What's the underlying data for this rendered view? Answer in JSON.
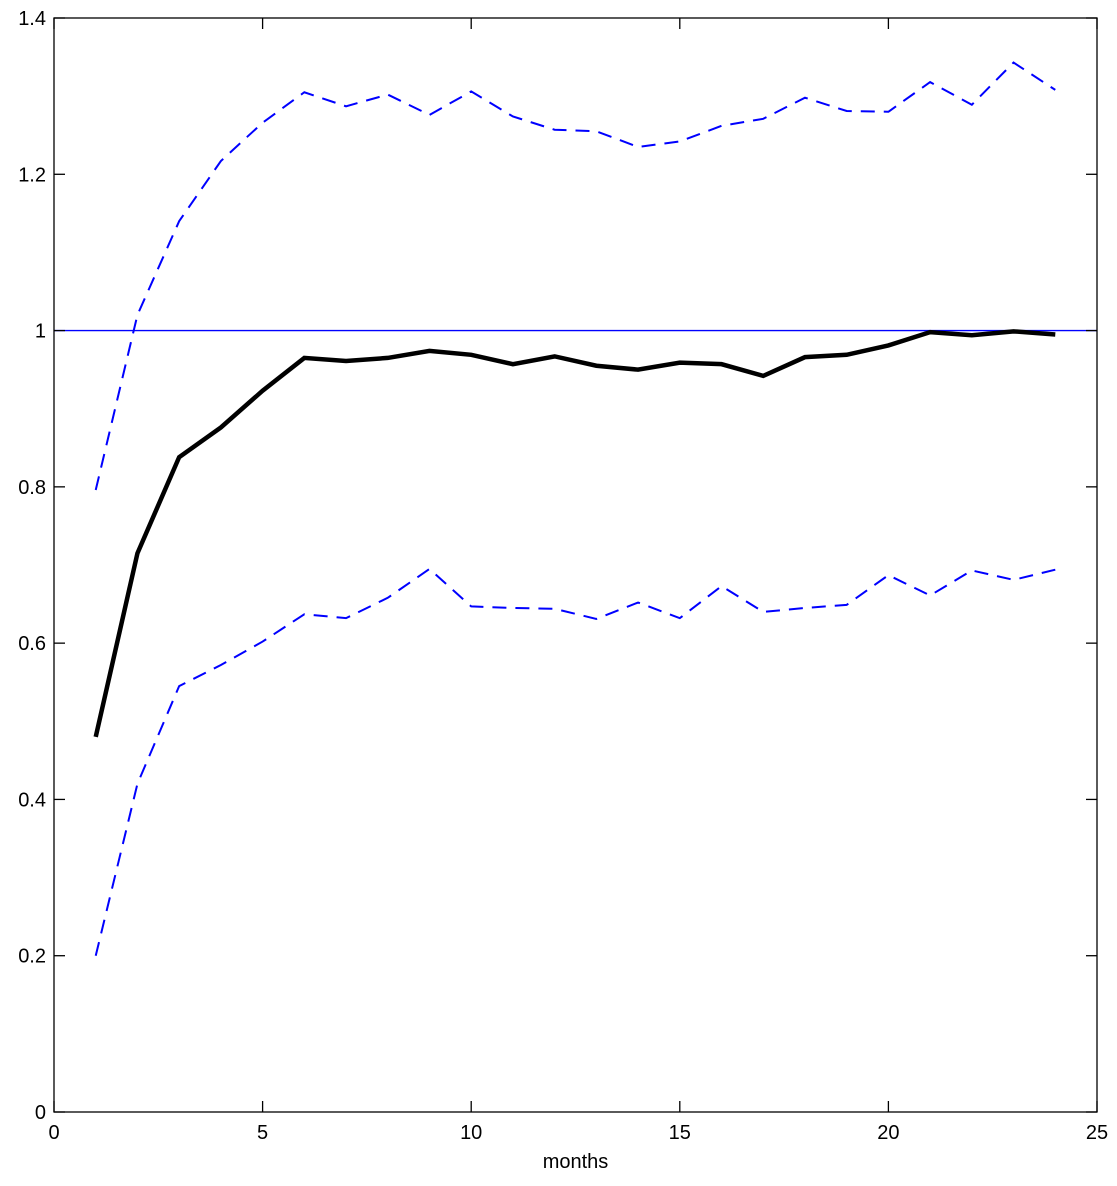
{
  "chart_data": {
    "type": "line",
    "title": "",
    "xlabel": "months",
    "ylabel": "",
    "xlim": [
      0,
      25
    ],
    "ylim": [
      0,
      1.4
    ],
    "xticks": [
      0,
      5,
      10,
      15,
      20,
      25
    ],
    "yticks": [
      0,
      0.2,
      0.4,
      0.6,
      0.8,
      1,
      1.2,
      1.4
    ],
    "xtick_labels": [
      "0",
      "5",
      "10",
      "15",
      "20",
      "25"
    ],
    "ytick_labels": [
      "0",
      "0.2",
      "0.4",
      "0.6",
      "0.8",
      "1",
      "1.2",
      "1.4"
    ],
    "grid": false,
    "reference_line": {
      "y": 1,
      "color": "#0000ff",
      "style": "solid"
    },
    "x": [
      1,
      2,
      3,
      4,
      5,
      6,
      7,
      8,
      9,
      10,
      11,
      12,
      13,
      14,
      15,
      16,
      17,
      18,
      19,
      20,
      21,
      22,
      23,
      24
    ],
    "series": [
      {
        "color": "#000000",
        "style": "solid",
        "values": [
          0.48,
          0.715,
          0.838,
          0.876,
          0.923,
          0.965,
          0.961,
          0.965,
          0.974,
          0.969,
          0.957,
          0.967,
          0.955,
          0.95,
          0.959,
          0.957,
          0.942,
          0.966,
          0.969,
          0.981,
          0.998,
          0.994,
          0.999,
          0.995
        ]
      },
      {
        "color": "#0000ff",
        "style": "dashed",
        "values": [
          0.796,
          1.02,
          1.14,
          1.217,
          1.266,
          1.305,
          1.287,
          1.302,
          1.276,
          1.306,
          1.274,
          1.257,
          1.255,
          1.235,
          1.242,
          1.262,
          1.271,
          1.298,
          1.281,
          1.28,
          1.318,
          1.289,
          1.343,
          1.308
        ]
      },
      {
        "color": "#0000ff",
        "style": "dashed",
        "values": [
          0.2,
          0.42,
          0.545,
          0.572,
          0.602,
          0.637,
          0.632,
          0.658,
          0.695,
          0.647,
          0.645,
          0.644,
          0.631,
          0.652,
          0.632,
          0.673,
          0.64,
          0.645,
          0.649,
          0.687,
          0.661,
          0.693,
          0.681,
          0.694
        ]
      }
    ]
  }
}
